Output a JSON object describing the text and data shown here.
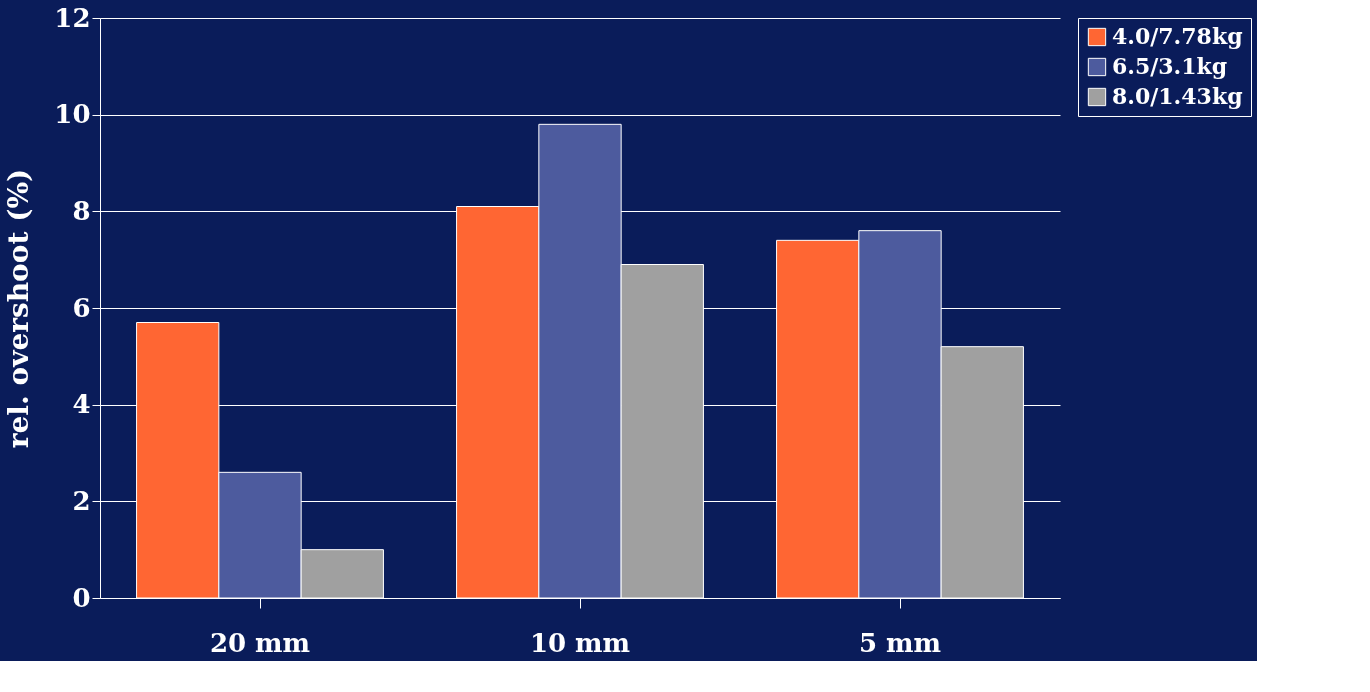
{
  "chart_data": {
    "type": "bar",
    "ylabel": "rel. overshoot (%)",
    "categories": [
      "20 mm",
      "10 mm",
      "5 mm"
    ],
    "series": [
      {
        "name": "4.0/7.78kg",
        "color": "#ff6633",
        "values": [
          5.7,
          8.1,
          7.4
        ]
      },
      {
        "name": "6.5/3.1kg",
        "color": "#4d5b9e",
        "values": [
          2.6,
          9.8,
          7.6
        ]
      },
      {
        "name": "8.0/1.43kg",
        "color": "#a0a0a0",
        "values": [
          1.0,
          6.9,
          5.2
        ]
      }
    ],
    "ylim": [
      0,
      12
    ],
    "yticks": [
      0,
      2,
      4,
      6,
      8,
      10,
      12
    ],
    "grid": "y",
    "legend": "right"
  }
}
